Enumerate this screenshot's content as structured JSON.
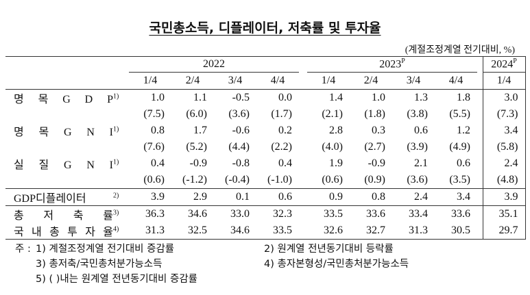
{
  "title": "국민총소득, 디플레이터, 저축률 및 투자율",
  "unit": "(계절조정계열 전기대비, %)",
  "header": {
    "years": [
      {
        "label": "2022"
      },
      {
        "label": "2023",
        "sup": "P"
      },
      {
        "label": "2024",
        "sup": "P"
      }
    ],
    "quarters": [
      "1/4",
      "2/4",
      "3/4",
      "4/4",
      "1/4",
      "2/4",
      "3/4",
      "4/4",
      "1/4"
    ]
  },
  "rows": [
    {
      "label": "명 목 G D P",
      "note": "1)",
      "values": [
        "1.0",
        "1.1",
        "-0.5",
        "0.0",
        "1.4",
        "1.0",
        "1.3",
        "1.8",
        "3.0"
      ]
    },
    {
      "values": [
        "(7.5)",
        "(6.0)",
        "(3.6)",
        "(1.7)",
        "(2.1)",
        "(1.8)",
        "(3.8)",
        "(5.5)",
        "(7.3)"
      ]
    },
    {
      "label": "명 목 G N I",
      "note": "1)",
      "values": [
        "0.8",
        "1.7",
        "-0.6",
        "0.2",
        "2.8",
        "0.3",
        "0.6",
        "1.2",
        "3.4"
      ]
    },
    {
      "values": [
        "(7.6)",
        "(5.2)",
        "(4.4)",
        "(2.2)",
        "(4.0)",
        "(2.7)",
        "(3.9)",
        "(4.9)",
        "(5.8)"
      ]
    },
    {
      "label": "실 질 G N I",
      "note": "1)",
      "values": [
        "0.4",
        "-0.9",
        "-0.8",
        "0.4",
        "1.9",
        "-0.9",
        "2.1",
        "0.6",
        "2.4"
      ]
    },
    {
      "values": [
        "(0.6)",
        "(-1.2)",
        "(-0.4)",
        "(-1.0)",
        "(0.6)",
        "(0.9)",
        "(3.6)",
        "(3.5)",
        "(4.8)"
      ]
    },
    {
      "label": "GDP디플레이터",
      "note": "2)",
      "values": [
        "3.9",
        "2.9",
        "0.1",
        "0.6",
        "0.9",
        "0.8",
        "2.4",
        "3.4",
        "3.9"
      ]
    },
    {
      "label": "총 저 축 률",
      "note": "3)",
      "values": [
        "36.3",
        "34.6",
        "33.0",
        "32.3",
        "33.5",
        "33.6",
        "33.4",
        "33.6",
        "35.1"
      ]
    },
    {
      "label": "국 내 총 투 자 율",
      "note": "4)",
      "values": [
        "31.3",
        "32.5",
        "34.6",
        "33.5",
        "32.6",
        "32.7",
        "31.3",
        "30.5",
        "29.7"
      ]
    }
  ],
  "footnotes": {
    "prefix": "주 :",
    "items": [
      "1) 계절조정계열 전기대비 증감률",
      "2) 원계열 전년동기대비 등락률",
      "3) 총저축/국민총처분가능소득",
      "4) 총자본형성/국민총처분가능소득",
      "5) (  )내는 원계열 전년동기대비 증감률"
    ]
  }
}
